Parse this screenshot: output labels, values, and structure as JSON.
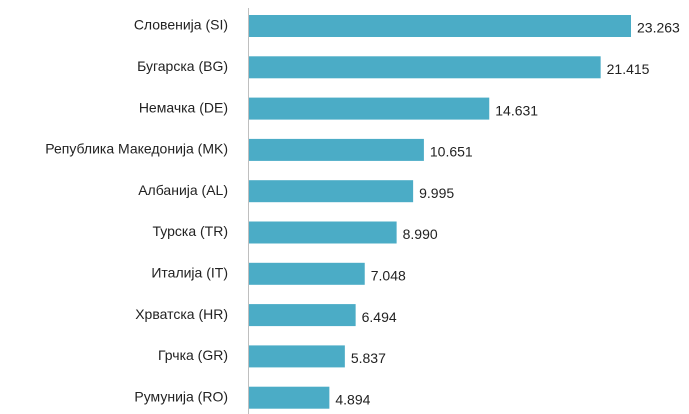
{
  "chart_data": {
    "type": "bar",
    "orientation": "horizontal",
    "categories": [
      "Словенија (SI)",
      "Бугарска (BG)",
      "Немачка (DE)",
      "Република Македонија (MK)",
      "Албанија (AL)",
      "Турска (TR)",
      "Италија (IT)",
      "Хрватска (HR)",
      "Грчка (GR)",
      "Румунија (RO)"
    ],
    "values": [
      23263,
      21415,
      14631,
      10651,
      9995,
      8990,
      7048,
      6494,
      5837,
      4894
    ],
    "value_labels": [
      "23.263",
      "21.415",
      "14.631",
      "10.651",
      "9.995",
      "8.990",
      "7.048",
      "6.494",
      "5.837",
      "4.894"
    ],
    "color": "#4bacc6"
  }
}
